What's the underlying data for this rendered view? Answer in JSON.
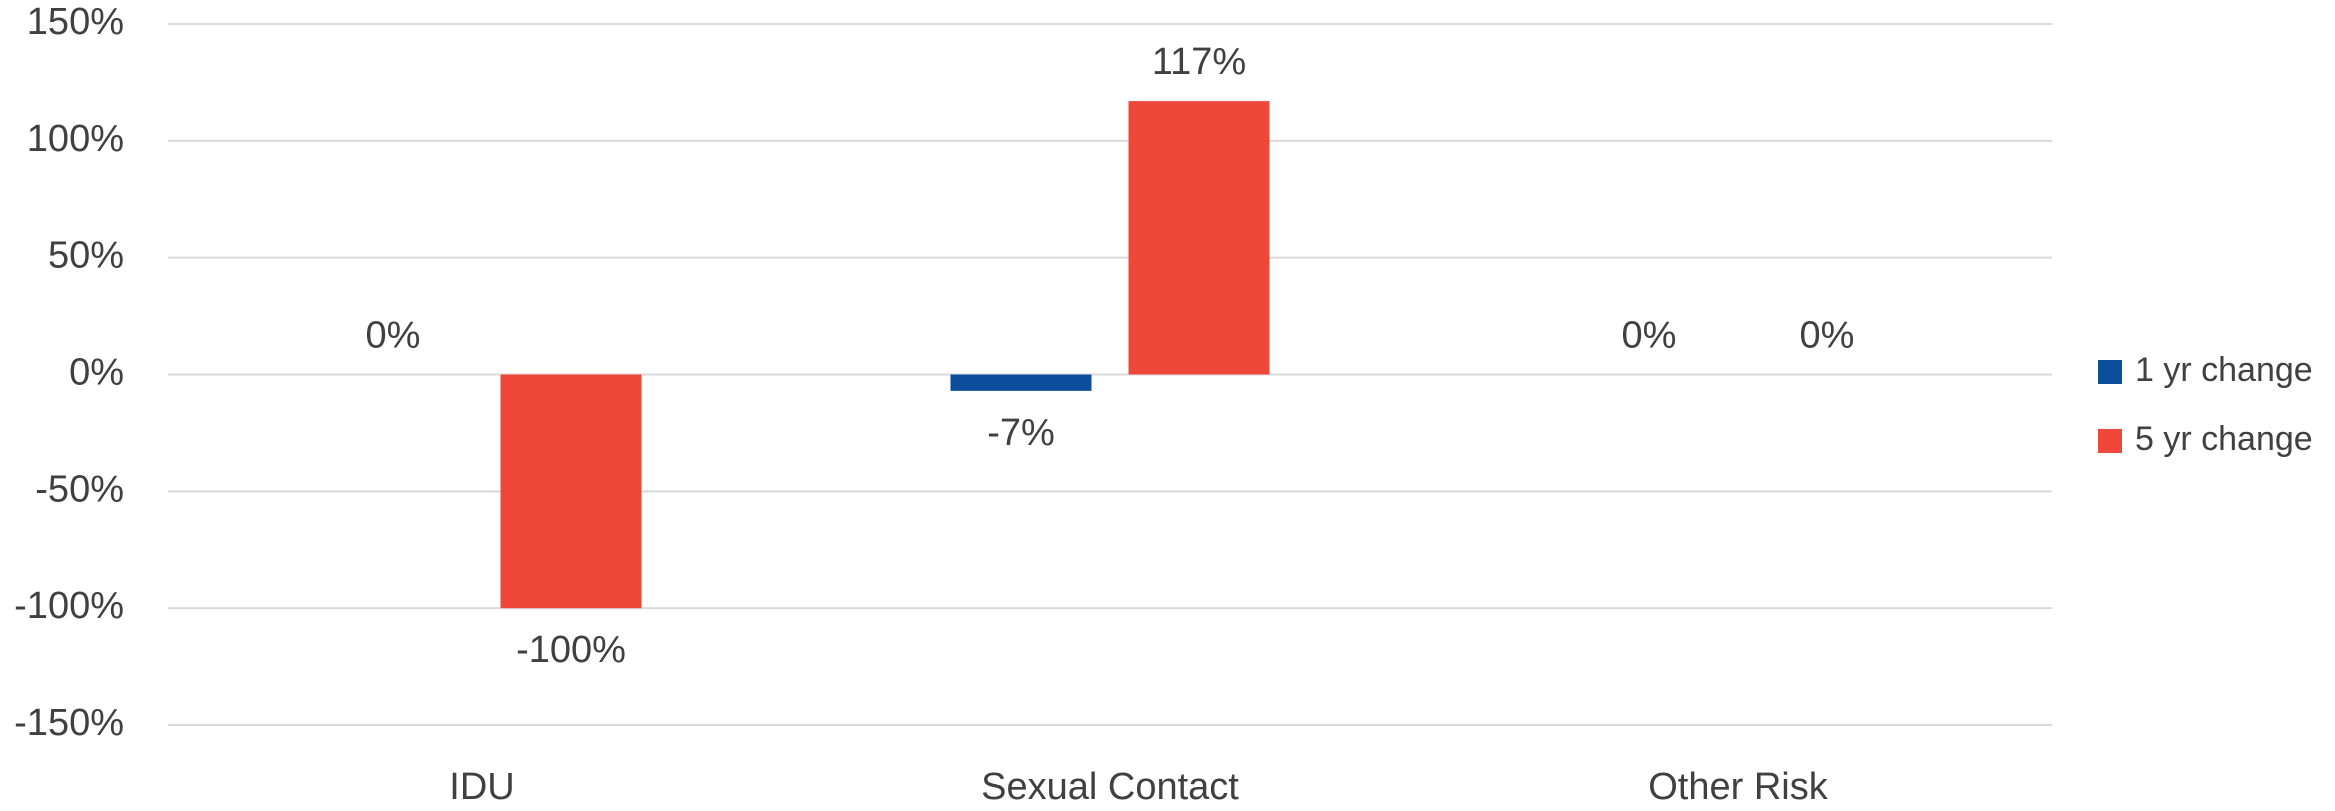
{
  "chart_data": {
    "type": "bar",
    "categories": [
      "IDU",
      "Sexual Contact",
      "Other Risk"
    ],
    "series": [
      {
        "name": "1 yr change",
        "color": "#0b4e9b",
        "values": [
          0,
          -7,
          0
        ],
        "value_labels": [
          "0%",
          "-7%",
          "0%"
        ]
      },
      {
        "name": "5 yr change",
        "color": "#ef473a",
        "values": [
          -100,
          117,
          0
        ],
        "value_labels": [
          "-100%",
          "117%",
          "0%"
        ]
      }
    ],
    "ylim": [
      -150,
      150
    ],
    "yticks": [
      {
        "value": -150,
        "label": "-150%"
      },
      {
        "value": -100,
        "label": "-100%"
      },
      {
        "value": -50,
        "label": "-50%"
      },
      {
        "value": 0,
        "label": "0%"
      },
      {
        "value": 50,
        "label": "50%"
      },
      {
        "value": 100,
        "label": "100%"
      },
      {
        "value": 150,
        "label": "150%"
      }
    ],
    "grid": true,
    "legend": "right"
  }
}
